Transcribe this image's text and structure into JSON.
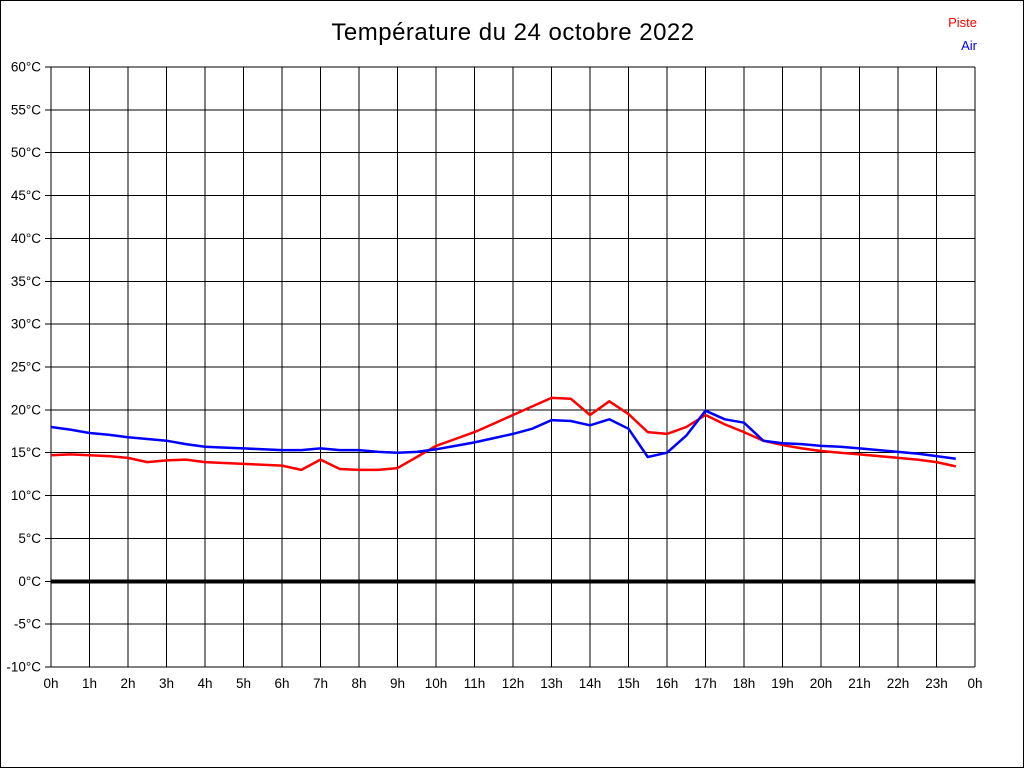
{
  "page": {
    "title": "Température du 24 octobre 2022"
  },
  "legend": [
    {
      "label": "Piste",
      "color": "#ff0000"
    },
    {
      "label": "Air",
      "color": "#0000ff"
    }
  ],
  "chart_data": {
    "type": "line",
    "title": "Température du 24 octobre 2022",
    "xlabel": "",
    "ylabel": "",
    "xlim": [
      0,
      24
    ],
    "ylim": [
      -10,
      60
    ],
    "y_tick_step": 5,
    "y_tick_suffix": "°C",
    "x_tick_labels": [
      "0h",
      "1h",
      "2h",
      "3h",
      "4h",
      "5h",
      "6h",
      "7h",
      "8h",
      "9h",
      "10h",
      "11h",
      "12h",
      "13h",
      "14h",
      "15h",
      "16h",
      "17h",
      "18h",
      "19h",
      "20h",
      "21h",
      "22h",
      "23h",
      "0h"
    ],
    "grid": true,
    "zero_line_at": 0,
    "legend_position": "top-right",
    "x": [
      0,
      0.5,
      1,
      1.5,
      2,
      2.5,
      3,
      3.5,
      4,
      4.5,
      5,
      5.5,
      6,
      6.5,
      7,
      7.5,
      8,
      8.5,
      9,
      9.5,
      10,
      10.5,
      11,
      11.5,
      12,
      12.5,
      13,
      13.5,
      14,
      14.5,
      15,
      15.5,
      16,
      16.5,
      17,
      17.5,
      18,
      18.5,
      19,
      19.5,
      20,
      20.5,
      21,
      21.5,
      22,
      22.5,
      23,
      23.5
    ],
    "series": [
      {
        "name": "Piste",
        "color": "#ff0000",
        "values": [
          14.7,
          14.8,
          14.7,
          14.6,
          14.4,
          13.9,
          14.1,
          14.2,
          13.9,
          13.8,
          13.7,
          13.6,
          13.5,
          13.0,
          14.2,
          13.1,
          13.0,
          13.0,
          13.2,
          14.5,
          15.8,
          16.6,
          17.4,
          18.4,
          19.4,
          20.4,
          21.4,
          21.3,
          19.4,
          21.0,
          19.5,
          17.4,
          17.2,
          18.0,
          19.4,
          18.3,
          17.4,
          16.4,
          15.9,
          15.5,
          15.2,
          15.0,
          14.8,
          14.6,
          14.4,
          14.2,
          13.9,
          13.4
        ]
      },
      {
        "name": "Air",
        "color": "#0000ff",
        "values": [
          18.0,
          17.7,
          17.3,
          17.1,
          16.8,
          16.6,
          16.4,
          16.0,
          15.7,
          15.6,
          15.5,
          15.4,
          15.3,
          15.3,
          15.5,
          15.3,
          15.3,
          15.1,
          15.0,
          15.1,
          15.4,
          15.8,
          16.2,
          16.7,
          17.2,
          17.8,
          18.8,
          18.7,
          18.2,
          18.9,
          17.8,
          14.5,
          15.0,
          17.0,
          19.9,
          18.9,
          18.5,
          16.4,
          16.1,
          16.0,
          15.8,
          15.7,
          15.5,
          15.3,
          15.1,
          14.9,
          14.6,
          14.3
        ]
      }
    ]
  }
}
